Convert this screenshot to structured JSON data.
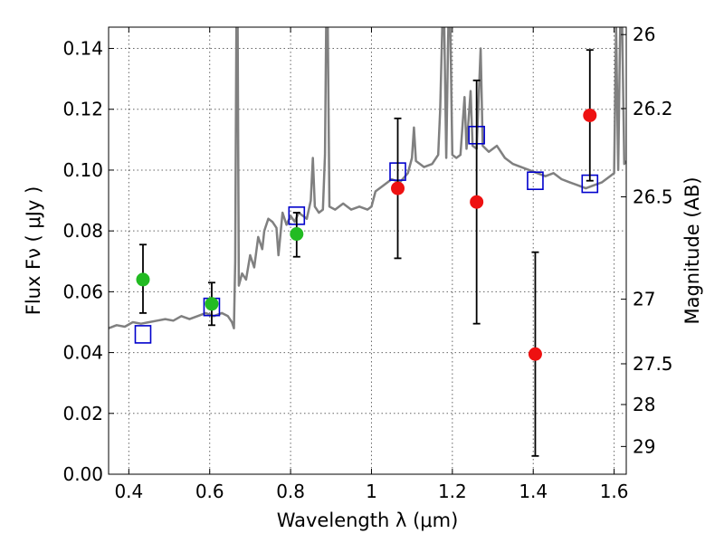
{
  "chart_data": {
    "type": "scatter",
    "xlabel": "Wavelength  λ (μm)",
    "ylabel": "Flux  Fν  ( μJy )",
    "ylabel_right": "Magnitude (AB)",
    "xlim": [
      0.35,
      1.63
    ],
    "ylim": [
      0.0,
      0.147
    ],
    "grid": true,
    "x_ticks": [
      {
        "value": 0.4,
        "label": "0.4"
      },
      {
        "value": 0.6,
        "label": "0.6"
      },
      {
        "value": 0.8,
        "label": "0.8"
      },
      {
        "value": 1.0,
        "label": "1"
      },
      {
        "value": 1.2,
        "label": "1.2"
      },
      {
        "value": 1.4,
        "label": "1.4"
      },
      {
        "value": 1.6,
        "label": "1.6"
      }
    ],
    "y_ticks": [
      {
        "value": 0.0,
        "label": "0.00"
      },
      {
        "value": 0.02,
        "label": "0.02"
      },
      {
        "value": 0.04,
        "label": "0.04"
      },
      {
        "value": 0.06,
        "label": "0.06"
      },
      {
        "value": 0.08,
        "label": "0.08"
      },
      {
        "value": 0.1,
        "label": "0.10"
      },
      {
        "value": 0.12,
        "label": "0.12"
      },
      {
        "value": 0.14,
        "label": "0.14"
      }
    ],
    "y2_ticks": [
      {
        "value": 26.0,
        "label": "26"
      },
      {
        "value": 26.2,
        "label": "26.2"
      },
      {
        "value": 26.5,
        "label": "26.5"
      },
      {
        "value": 27.0,
        "label": "27"
      },
      {
        "value": 27.5,
        "label": "27.5"
      },
      {
        "value": 28.0,
        "label": "28"
      },
      {
        "value": 29.0,
        "label": "29"
      }
    ],
    "series": [
      {
        "kind": "line",
        "color": "#808080",
        "points": [
          [
            0.35,
            0.048
          ],
          [
            0.37,
            0.049
          ],
          [
            0.39,
            0.0485
          ],
          [
            0.41,
            0.05
          ],
          [
            0.43,
            0.0495
          ],
          [
            0.45,
            0.05
          ],
          [
            0.47,
            0.0505
          ],
          [
            0.49,
            0.051
          ],
          [
            0.51,
            0.0505
          ],
          [
            0.53,
            0.052
          ],
          [
            0.55,
            0.051
          ],
          [
            0.57,
            0.052
          ],
          [
            0.59,
            0.053
          ],
          [
            0.61,
            0.052
          ],
          [
            0.63,
            0.053
          ],
          [
            0.645,
            0.052
          ],
          [
            0.655,
            0.05
          ],
          [
            0.66,
            0.048
          ],
          [
            0.663,
            0.07
          ],
          [
            0.666,
            0.147
          ],
          [
            0.669,
            0.147
          ],
          [
            0.672,
            0.062
          ],
          [
            0.68,
            0.066
          ],
          [
            0.69,
            0.064
          ],
          [
            0.7,
            0.072
          ],
          [
            0.71,
            0.068
          ],
          [
            0.72,
            0.078
          ],
          [
            0.73,
            0.074
          ],
          [
            0.735,
            0.08
          ],
          [
            0.745,
            0.084
          ],
          [
            0.755,
            0.083
          ],
          [
            0.765,
            0.081
          ],
          [
            0.77,
            0.072
          ],
          [
            0.78,
            0.086
          ],
          [
            0.79,
            0.082
          ],
          [
            0.8,
            0.085
          ],
          [
            0.81,
            0.083
          ],
          [
            0.82,
            0.086
          ],
          [
            0.83,
            0.085
          ],
          [
            0.84,
            0.084
          ],
          [
            0.85,
            0.09
          ],
          [
            0.855,
            0.104
          ],
          [
            0.86,
            0.088
          ],
          [
            0.87,
            0.086
          ],
          [
            0.88,
            0.087
          ],
          [
            0.885,
            0.105
          ],
          [
            0.888,
            0.147
          ],
          [
            0.892,
            0.147
          ],
          [
            0.896,
            0.088
          ],
          [
            0.91,
            0.087
          ],
          [
            0.93,
            0.089
          ],
          [
            0.95,
            0.087
          ],
          [
            0.97,
            0.088
          ],
          [
            0.99,
            0.087
          ],
          [
            1.0,
            0.088
          ],
          [
            1.01,
            0.093
          ],
          [
            1.03,
            0.095
          ],
          [
            1.05,
            0.097
          ],
          [
            1.07,
            0.096
          ],
          [
            1.09,
            0.099
          ],
          [
            1.1,
            0.104
          ],
          [
            1.105,
            0.114
          ],
          [
            1.11,
            0.103
          ],
          [
            1.13,
            0.101
          ],
          [
            1.15,
            0.102
          ],
          [
            1.165,
            0.105
          ],
          [
            1.17,
            0.12
          ],
          [
            1.175,
            0.147
          ],
          [
            1.18,
            0.147
          ],
          [
            1.185,
            0.104
          ],
          [
            1.19,
            0.147
          ],
          [
            1.195,
            0.147
          ],
          [
            1.2,
            0.105
          ],
          [
            1.21,
            0.104
          ],
          [
            1.22,
            0.105
          ],
          [
            1.23,
            0.124
          ],
          [
            1.235,
            0.107
          ],
          [
            1.245,
            0.126
          ],
          [
            1.25,
            0.108
          ],
          [
            1.26,
            0.107
          ],
          [
            1.27,
            0.14
          ],
          [
            1.275,
            0.108
          ],
          [
            1.29,
            0.106
          ],
          [
            1.31,
            0.108
          ],
          [
            1.33,
            0.104
          ],
          [
            1.35,
            0.102
          ],
          [
            1.37,
            0.101
          ],
          [
            1.39,
            0.1
          ],
          [
            1.41,
            0.099
          ],
          [
            1.43,
            0.098
          ],
          [
            1.45,
            0.099
          ],
          [
            1.47,
            0.097
          ],
          [
            1.49,
            0.096
          ],
          [
            1.51,
            0.095
          ],
          [
            1.53,
            0.094
          ],
          [
            1.55,
            0.095
          ],
          [
            1.57,
            0.096
          ],
          [
            1.59,
            0.098
          ],
          [
            1.6,
            0.099
          ],
          [
            1.605,
            0.147
          ],
          [
            1.61,
            0.1
          ],
          [
            1.615,
            0.147
          ],
          [
            1.62,
            0.147
          ],
          [
            1.625,
            0.102
          ],
          [
            1.63,
            0.103
          ]
        ]
      },
      {
        "kind": "points",
        "marker": "open-square",
        "color": "#0000cc",
        "points": [
          [
            0.435,
            0.046
          ],
          [
            0.605,
            0.055
          ],
          [
            0.815,
            0.085
          ],
          [
            1.065,
            0.0995
          ],
          [
            1.26,
            0.1115
          ],
          [
            1.405,
            0.0965
          ],
          [
            1.54,
            0.0955
          ]
        ]
      },
      {
        "kind": "points",
        "marker": "filled-circle",
        "color": "#22bb22",
        "points": [
          {
            "x": 0.435,
            "y": 0.064,
            "yerr_low": 0.053,
            "yerr_high": 0.0755
          },
          {
            "x": 0.605,
            "y": 0.056,
            "yerr_low": 0.049,
            "yerr_high": 0.063
          },
          {
            "x": 0.815,
            "y": 0.079,
            "yerr_low": 0.0715,
            "yerr_high": 0.086
          }
        ]
      },
      {
        "kind": "points",
        "marker": "filled-circle",
        "color": "#ee1111",
        "points": [
          {
            "x": 1.065,
            "y": 0.094,
            "yerr_low": 0.071,
            "yerr_high": 0.117
          },
          {
            "x": 1.26,
            "y": 0.0895,
            "yerr_low": 0.0495,
            "yerr_high": 0.1295
          },
          {
            "x": 1.405,
            "y": 0.0395,
            "yerr_low": 0.006,
            "yerr_high": 0.073
          },
          {
            "x": 1.54,
            "y": 0.118,
            "yerr_low": 0.0965,
            "yerr_high": 0.1395
          }
        ]
      }
    ]
  }
}
